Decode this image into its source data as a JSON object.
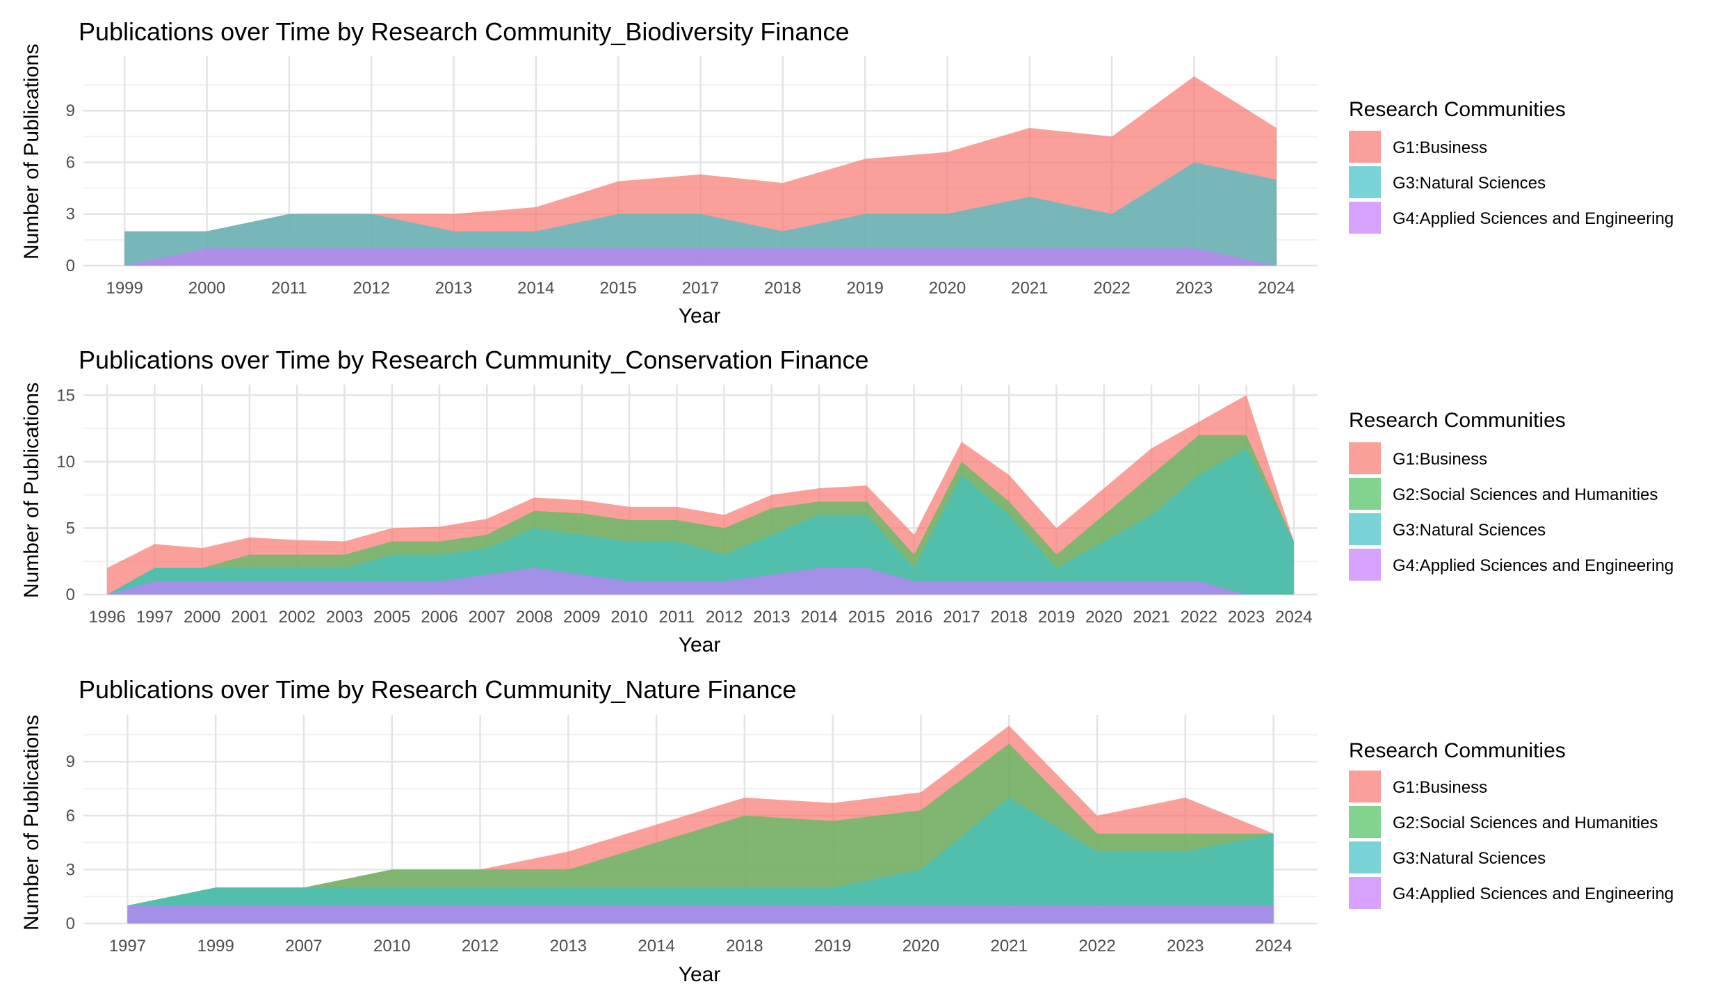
{
  "legend_title": "Research Communities",
  "colors": {
    "G1:Business": "#F8766D",
    "G2:Social Sciences and Humanities": "#4CC060",
    "G3:Natural Sciences": "#3FC2C6",
    "G4:Applied Sciences and Engineering": "#C77CFF"
  },
  "chart_data": [
    {
      "type": "area",
      "stacked": true,
      "title": "Publications over Time by Research Community_Biodiversity Finance",
      "xlabel": "Year",
      "ylabel": "Number of Publications",
      "x": [
        "1999",
        "2000",
        "2011",
        "2012",
        "2013",
        "2014",
        "2015",
        "2017",
        "2018",
        "2019",
        "2020",
        "2021",
        "2022",
        "2023",
        "2024"
      ],
      "ylim": [
        0,
        12.2
      ],
      "yticks": [
        0,
        3,
        6,
        9
      ],
      "grid": true,
      "legend_position": "right",
      "legend": [
        "G1:Business",
        "G3:Natural Sciences",
        "G4:Applied Sciences and Engineering"
      ],
      "series": [
        {
          "name": "G4:Applied Sciences and Engineering",
          "values": [
            0,
            1,
            1,
            1,
            1,
            1,
            1,
            1,
            1,
            1,
            1,
            1,
            1,
            1,
            0
          ]
        },
        {
          "name": "G3:Natural Sciences",
          "values": [
            2,
            1,
            2,
            2,
            1,
            1,
            2,
            2,
            1,
            2,
            2,
            3,
            2,
            5,
            5
          ]
        },
        {
          "name": "G1:Business",
          "values": [
            0,
            0,
            0,
            0,
            1,
            1.4,
            1.9,
            2.3,
            2.8,
            3.2,
            3.6,
            4,
            4.5,
            5,
            3
          ]
        }
      ]
    },
    {
      "type": "area",
      "stacked": true,
      "title": "Publications over Time by Research Cummunity_Conservation Finance",
      "xlabel": "Year",
      "ylabel": "Number of Publications",
      "x": [
        "1996",
        "1997",
        "2000",
        "2001",
        "2002",
        "2003",
        "2005",
        "2006",
        "2007",
        "2008",
        "2009",
        "2010",
        "2011",
        "2012",
        "2013",
        "2014",
        "2015",
        "2016",
        "2017",
        "2018",
        "2019",
        "2020",
        "2021",
        "2022",
        "2023",
        "2024"
      ],
      "ylim": [
        0,
        15.8
      ],
      "yticks": [
        0,
        5,
        10,
        15
      ],
      "grid": true,
      "legend_position": "right",
      "legend": [
        "G1:Business",
        "G2:Social Sciences and Humanities",
        "G3:Natural Sciences",
        "G4:Applied Sciences and Engineering"
      ],
      "series": [
        {
          "name": "G4:Applied Sciences and Engineering",
          "values": [
            0,
            1,
            1,
            1,
            1,
            1,
            1,
            1,
            1.5,
            2,
            1.5,
            1,
            1,
            1,
            1.5,
            2,
            2,
            1,
            1,
            1,
            1,
            1,
            1,
            1,
            0,
            0
          ]
        },
        {
          "name": "G3:Natural Sciences",
          "values": [
            0,
            1,
            1,
            1,
            1,
            1,
            2,
            2,
            2,
            3,
            3,
            3,
            3,
            2,
            3,
            4,
            4,
            1,
            8,
            5,
            1,
            3,
            5,
            8,
            11,
            4
          ]
        },
        {
          "name": "G2:Social Sciences and Humanities",
          "values": [
            0,
            0,
            0,
            1,
            1,
            1,
            1,
            1,
            1,
            1.3,
            1.6,
            1.6,
            1.6,
            2,
            2,
            1,
            1,
            1,
            1,
            1,
            1,
            2,
            3,
            3,
            1,
            0
          ]
        },
        {
          "name": "G1:Business",
          "values": [
            2,
            1.8,
            1.5,
            1.3,
            1.1,
            1,
            1,
            1.1,
            1.2,
            1,
            1,
            1,
            1,
            1,
            1,
            1,
            1.2,
            1.5,
            1.5,
            2,
            2,
            2,
            2,
            1,
            3,
            0
          ]
        }
      ]
    },
    {
      "type": "area",
      "stacked": true,
      "title": "Publications over Time by Research Cummunity_Nature Finance",
      "xlabel": "Year",
      "ylabel": "Number of Publications",
      "x": [
        "1997",
        "1999",
        "2007",
        "2010",
        "2012",
        "2013",
        "2014",
        "2018",
        "2019",
        "2020",
        "2021",
        "2022",
        "2023",
        "2024"
      ],
      "ylim": [
        0,
        11.6
      ],
      "yticks": [
        0,
        3,
        6,
        9
      ],
      "grid": true,
      "legend_position": "right",
      "legend": [
        "G1:Business",
        "G2:Social Sciences and Humanities",
        "G3:Natural Sciences",
        "G4:Applied Sciences and Engineering"
      ],
      "series": [
        {
          "name": "G4:Applied Sciences and Engineering",
          "values": [
            1,
            1,
            1,
            1,
            1,
            1,
            1,
            1,
            1,
            1,
            1,
            1,
            1,
            1
          ]
        },
        {
          "name": "G3:Natural Sciences",
          "values": [
            0,
            1,
            1,
            1,
            1,
            1,
            1,
            1,
            1,
            2,
            6,
            3,
            3,
            4
          ]
        },
        {
          "name": "G2:Social Sciences and Humanities",
          "values": [
            0,
            0,
            0,
            1,
            1,
            1,
            2.5,
            4,
            3.7,
            3.3,
            3,
            1,
            1,
            0
          ]
        },
        {
          "name": "G1:Business",
          "values": [
            0,
            0,
            0,
            0,
            0,
            1,
            1,
            1,
            1,
            1,
            1,
            1,
            2,
            0
          ]
        }
      ]
    }
  ]
}
